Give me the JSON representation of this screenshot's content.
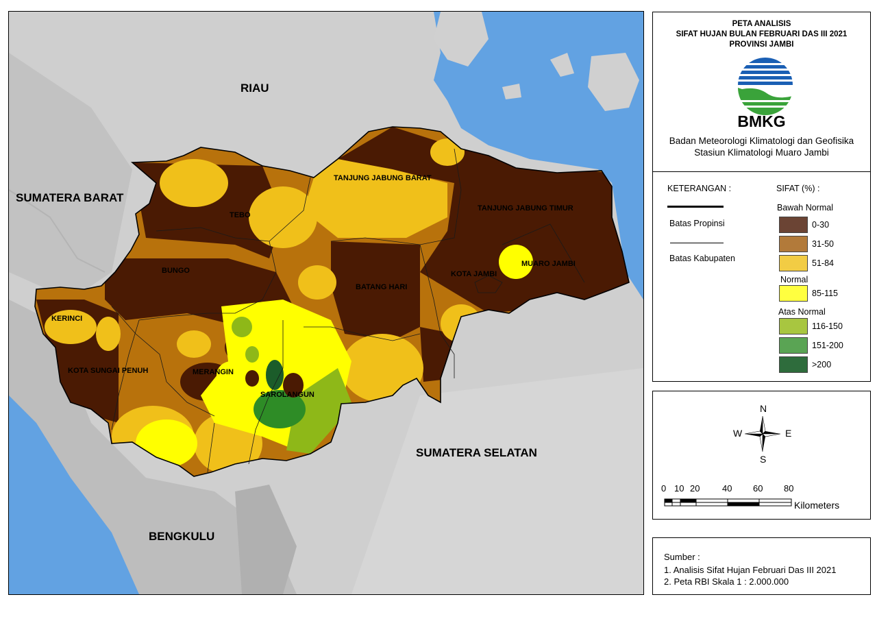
{
  "map": {
    "regions": {
      "riau": "RIAU",
      "sumatera_barat": "SUMATERA BARAT",
      "sumatera_selatan": "SUMATERA SELATAN",
      "bengkulu": "BENGKULU"
    },
    "kabupaten": {
      "tanjung_jabung_barat": "TANJUNG JABUNG BARAT",
      "tanjung_jabung_timur": "TANJUNG JABUNG TIMUR",
      "tebo": "TEBO",
      "bungo": "BUNGO",
      "batang_hari": "BATANG HARI",
      "kota_jambi": "KOTA JAMBI",
      "muaro_jambi": "MUARO JAMBI",
      "kerinci": "KERINCI",
      "kota_sungai_penuh": "KOTA SUNGAI PENUH",
      "merangin": "MERANGIN",
      "sarolangun": "SAROLANGUN"
    }
  },
  "title": {
    "line1": "PETA ANALISIS",
    "line2": "SIFAT HUJAN BULAN FEBRUARI DAS III 2021",
    "line3": "PROVINSI JAMBI"
  },
  "logo": {
    "text": "BMKG",
    "icon": "bmkg-logo-icon"
  },
  "agency": {
    "line1": "Badan Meteorologi Klimatologi dan Geofisika",
    "line2": "Stasiun Klimatologi Muaro Jambi"
  },
  "legend": {
    "heading": "KETERANGAN :",
    "batas_propinsi": "Batas Propinsi",
    "batas_kabupaten": "Batas Kabupaten",
    "sifat_heading": "SIFAT (%) :",
    "groups": [
      {
        "name": "Bawah Normal",
        "items": [
          {
            "label": "0-30",
            "color": "#6b4434"
          },
          {
            "label": "31-50",
            "color": "#b27a3a"
          },
          {
            "label": "51-84",
            "color": "#f2cc44"
          }
        ]
      },
      {
        "name": "Normal",
        "items": [
          {
            "label": "85-115",
            "color": "#ffff40"
          }
        ]
      },
      {
        "name": "Atas Normal",
        "items": [
          {
            "label": "116-150",
            "color": "#a8c640"
          },
          {
            "label": "151-200",
            "color": "#5aa454"
          },
          {
            "label": ">200",
            "color": "#2e6c3c"
          }
        ]
      }
    ]
  },
  "compass": {
    "n": "N",
    "s": "S",
    "e": "E",
    "w": "W"
  },
  "scale": {
    "ticks": [
      "0",
      "10",
      "20",
      "40",
      "60",
      "80"
    ],
    "unit": "Kilometers"
  },
  "source": {
    "heading": "Sumber :",
    "line1": "1. Analisis Sifat Hujan Februari Das III 2021",
    "line2": "2. Peta RBI Skala 1 : 2.000.000"
  }
}
